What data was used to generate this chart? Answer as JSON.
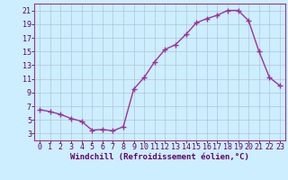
{
  "x": [
    0,
    1,
    2,
    3,
    4,
    5,
    6,
    7,
    8,
    9,
    10,
    11,
    12,
    13,
    14,
    15,
    16,
    17,
    18,
    19,
    20,
    21,
    22,
    23
  ],
  "y": [
    6.5,
    6.2,
    5.8,
    5.2,
    4.8,
    3.5,
    3.6,
    3.4,
    4.0,
    9.5,
    11.2,
    13.5,
    15.3,
    16.0,
    17.5,
    19.2,
    19.8,
    20.3,
    21.0,
    21.0,
    19.5,
    15.0,
    11.2,
    10.0
  ],
  "line_color": "#993399",
  "marker": "+",
  "marker_size": 4,
  "background_color": "#cceeff",
  "grid_color": "#aabbcc",
  "xlabel": "Windchill (Refroidissement éolien,°C)",
  "xlim": [
    -0.5,
    23.5
  ],
  "ylim": [
    2,
    22
  ],
  "yticks": [
    3,
    5,
    7,
    9,
    11,
    13,
    15,
    17,
    19,
    21
  ],
  "xticks": [
    0,
    1,
    2,
    3,
    4,
    5,
    6,
    7,
    8,
    9,
    10,
    11,
    12,
    13,
    14,
    15,
    16,
    17,
    18,
    19,
    20,
    21,
    22,
    23
  ],
  "xlabel_fontsize": 6.5,
  "tick_fontsize": 6.0,
  "line_width": 1.0
}
